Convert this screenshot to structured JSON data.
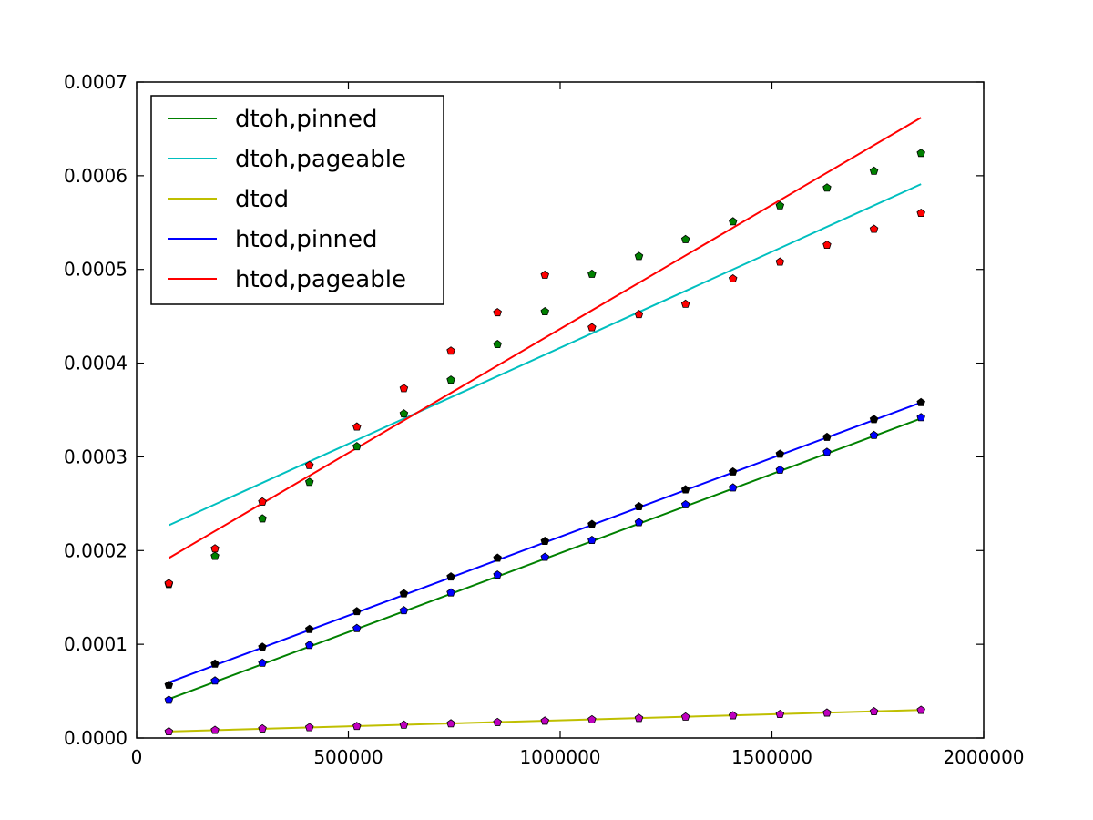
{
  "chart_data": {
    "type": "scatter",
    "title": "",
    "xlabel": "",
    "ylabel": "",
    "xlim": [
      0,
      2000000
    ],
    "ylim": [
      0,
      0.0007
    ],
    "grid": false,
    "legend_position": "top-left",
    "x_ticks": [
      0,
      500000,
      1000000,
      1500000,
      2000000
    ],
    "x_tick_labels": [
      "0",
      "500000",
      "1000000",
      "1500000",
      "2000000"
    ],
    "y_ticks": [
      0,
      0.0001,
      0.0002,
      0.0003,
      0.0004,
      0.0005,
      0.0006,
      0.0007
    ],
    "y_tick_labels": [
      "0.0000",
      "0.0001",
      "0.0002",
      "0.0003",
      "0.0004",
      "0.0005",
      "0.0006",
      "0.0007"
    ],
    "x": [
      76000,
      185000,
      297000,
      408000,
      520000,
      631000,
      742000,
      852000,
      964000,
      1075000,
      1186000,
      1296000,
      1408000,
      1519000,
      1630000,
      1741000,
      1852000
    ],
    "series": [
      {
        "name": "dtoh,pinned",
        "color": "#008000",
        "marker_color": "#008000",
        "points": [
          0.000164,
          0.000194,
          0.000234,
          0.000273,
          0.000311,
          0.000346,
          0.000382,
          0.00042,
          0.000455,
          0.000495,
          0.000514,
          0.000532,
          0.000551,
          0.000568,
          0.000587,
          0.000605,
          0.000624
        ],
        "fit": [
          4.15e-05,
          0.000341
        ]
      },
      {
        "name": "dtoh,pageable",
        "color": "#00bfbf",
        "marker_color": "#ff0000",
        "points": [
          0.000165,
          0.000202,
          0.000252,
          0.000291,
          0.000332,
          0.000373,
          0.000413,
          0.000454,
          0.000494,
          0.000438,
          0.000452,
          0.000463,
          0.00049,
          0.000508,
          0.000526,
          0.000543,
          0.00056
        ],
        "fit": [
          0.000227,
          0.000591
        ]
      },
      {
        "name": "dtod",
        "color": "#bfbf00",
        "marker_color": "#bf00bf",
        "points": [
          6.8e-06,
          8.3e-06,
          9.9e-06,
          1.12e-05,
          1.25e-05,
          1.39e-05,
          1.53e-05,
          1.67e-05,
          1.82e-05,
          1.96e-05,
          2.11e-05,
          2.25e-05,
          2.39e-05,
          2.53e-05,
          2.68e-05,
          2.82e-05,
          2.97e-05
        ],
        "fit": [
          6.9e-06,
          2.99e-05
        ]
      },
      {
        "name": "htod,pinned",
        "color": "#0000ff",
        "marker_color": "#0000ff",
        "points": [
          4.05e-05,
          6.1e-05,
          8e-05,
          9.9e-05,
          0.000117,
          0.000136,
          0.000155,
          0.000174,
          0.000193,
          0.000211,
          0.00023,
          0.000249,
          0.000267,
          0.000286,
          0.000305,
          0.000323,
          0.000342
        ],
        "fit": [
          5.93e-05,
          0.000358
        ]
      },
      {
        "name": "htod,pageable",
        "color": "#ff0000",
        "marker_color": "#000000",
        "points": [
          5.65e-05,
          7.9e-05,
          9.7e-05,
          0.000116,
          0.000135,
          0.000154,
          0.000172,
          0.000192,
          0.00021,
          0.000228,
          0.000247,
          0.000265,
          0.000284,
          0.000303,
          0.000321,
          0.00034,
          0.000358
        ],
        "fit": [
          0.000192,
          0.000662
        ]
      }
    ]
  }
}
